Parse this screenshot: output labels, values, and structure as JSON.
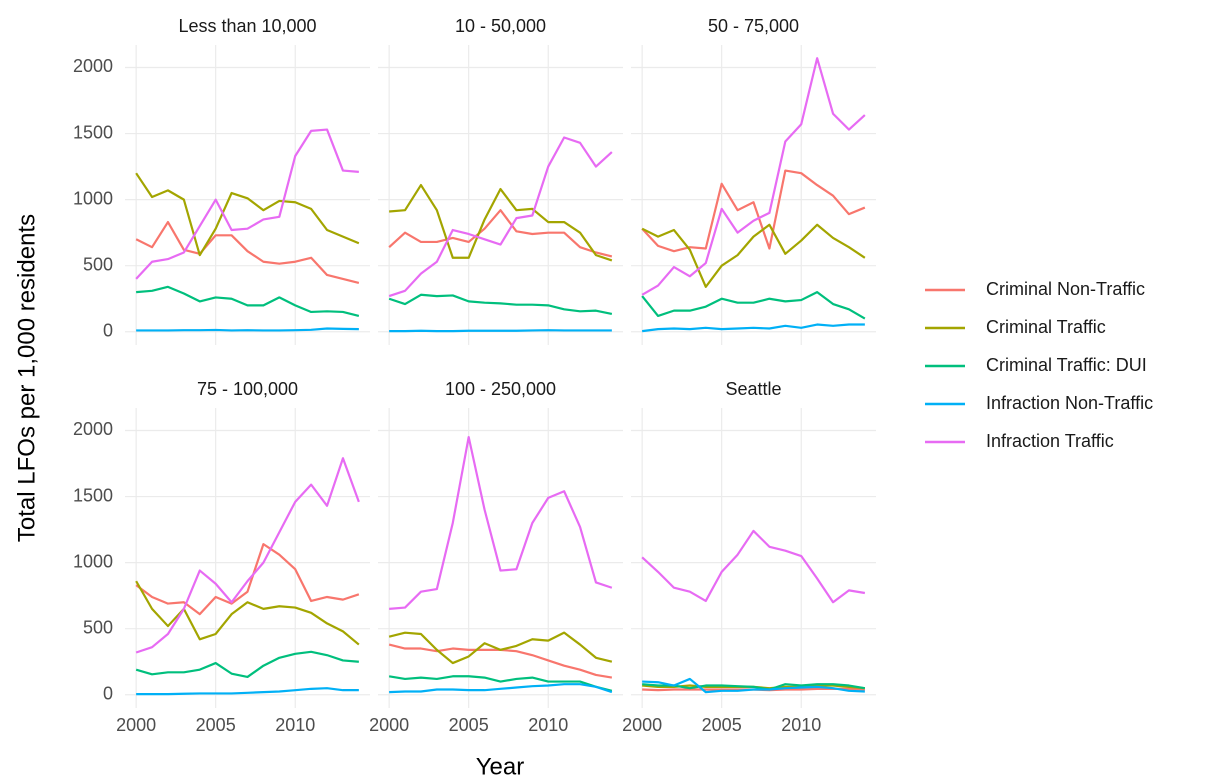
{
  "xlabel": "Year",
  "ylabel": "Total LFOs per 1,000 residents",
  "chart_data": [
    {
      "type": "line",
      "title": "Less than 10,000",
      "x": [
        2000,
        2001,
        2002,
        2003,
        2004,
        2005,
        2006,
        2007,
        2008,
        2009,
        2010,
        2011,
        2012,
        2013,
        2014
      ],
      "xlim": [
        1999.3,
        2014.7
      ],
      "xticks": [
        2000,
        2005,
        2010
      ],
      "ylim": [
        -100,
        2170
      ],
      "yticks": [
        0,
        500,
        1000,
        1500,
        2000
      ],
      "grid": true,
      "series": [
        {
          "name": "Criminal Non-Traffic",
          "color": "#F8766D",
          "values": [
            700,
            640,
            830,
            620,
            590,
            730,
            730,
            610,
            530,
            515,
            530,
            560,
            430,
            400,
            370
          ]
        },
        {
          "name": "Criminal Traffic",
          "color": "#A3A500",
          "values": [
            1200,
            1020,
            1070,
            1000,
            580,
            780,
            1050,
            1010,
            920,
            990,
            980,
            930,
            770,
            720,
            670
          ]
        },
        {
          "name": "Criminal Traffic: DUI",
          "color": "#00BF7D",
          "values": [
            300,
            310,
            340,
            290,
            230,
            260,
            250,
            200,
            200,
            260,
            200,
            150,
            155,
            150,
            120
          ]
        },
        {
          "name": "Infraction Non-Traffic",
          "color": "#00B0F6",
          "values": [
            10,
            10,
            10,
            12,
            12,
            14,
            10,
            12,
            10,
            10,
            12,
            15,
            25,
            22,
            20
          ]
        },
        {
          "name": "Infraction Traffic",
          "color": "#E76BF3",
          "values": [
            400,
            530,
            550,
            600,
            800,
            1000,
            770,
            780,
            850,
            870,
            1330,
            1520,
            1530,
            1220,
            1210
          ]
        }
      ]
    },
    {
      "type": "line",
      "title": "10 - 50,000",
      "x": [
        2000,
        2001,
        2002,
        2003,
        2004,
        2005,
        2006,
        2007,
        2008,
        2009,
        2010,
        2011,
        2012,
        2013,
        2014
      ],
      "xlim": [
        1999.3,
        2014.7
      ],
      "xticks": [
        2000,
        2005,
        2010
      ],
      "ylim": [
        -100,
        2170
      ],
      "yticks": [
        0,
        500,
        1000,
        1500,
        2000
      ],
      "grid": true,
      "series": [
        {
          "name": "Criminal Non-Traffic",
          "color": "#F8766D",
          "values": [
            640,
            750,
            680,
            680,
            710,
            680,
            780,
            920,
            760,
            740,
            750,
            750,
            640,
            600,
            570
          ]
        },
        {
          "name": "Criminal Traffic",
          "color": "#A3A500",
          "values": [
            910,
            920,
            1110,
            920,
            560,
            560,
            850,
            1080,
            920,
            930,
            830,
            830,
            750,
            580,
            540
          ]
        },
        {
          "name": "Criminal Traffic: DUI",
          "color": "#00BF7D",
          "values": [
            250,
            210,
            280,
            270,
            275,
            230,
            220,
            215,
            205,
            205,
            200,
            170,
            155,
            160,
            135
          ]
        },
        {
          "name": "Infraction Non-Traffic",
          "color": "#00B0F6",
          "values": [
            5,
            5,
            8,
            5,
            5,
            8,
            8,
            8,
            8,
            10,
            12,
            10,
            10,
            10,
            10
          ]
        },
        {
          "name": "Infraction Traffic",
          "color": "#E76BF3",
          "values": [
            270,
            310,
            440,
            530,
            770,
            740,
            700,
            660,
            860,
            880,
            1250,
            1470,
            1430,
            1250,
            1360
          ]
        }
      ]
    },
    {
      "type": "line",
      "title": "50 - 75,000",
      "x": [
        2000,
        2001,
        2002,
        2003,
        2004,
        2005,
        2006,
        2007,
        2008,
        2009,
        2010,
        2011,
        2012,
        2013,
        2014
      ],
      "xlim": [
        1999.3,
        2014.7
      ],
      "xticks": [
        2000,
        2005,
        2010
      ],
      "ylim": [
        -100,
        2170
      ],
      "yticks": [
        0,
        500,
        1000,
        1500,
        2000
      ],
      "grid": true,
      "series": [
        {
          "name": "Criminal Non-Traffic",
          "color": "#F8766D",
          "values": [
            780,
            650,
            610,
            640,
            630,
            1120,
            920,
            980,
            630,
            1220,
            1200,
            1110,
            1030,
            890,
            940
          ]
        },
        {
          "name": "Criminal Traffic",
          "color": "#A3A500",
          "values": [
            780,
            720,
            770,
            620,
            340,
            500,
            580,
            720,
            810,
            590,
            690,
            810,
            710,
            640,
            560
          ]
        },
        {
          "name": "Criminal Traffic: DUI",
          "color": "#00BF7D",
          "values": [
            270,
            120,
            160,
            160,
            190,
            250,
            220,
            220,
            250,
            230,
            240,
            300,
            210,
            170,
            100
          ]
        },
        {
          "name": "Infraction Non-Traffic",
          "color": "#00B0F6",
          "values": [
            5,
            20,
            25,
            20,
            30,
            20,
            25,
            30,
            25,
            45,
            30,
            55,
            45,
            55,
            55
          ]
        },
        {
          "name": "Infraction Traffic",
          "color": "#E76BF3",
          "values": [
            280,
            350,
            490,
            420,
            520,
            930,
            750,
            840,
            900,
            1440,
            1570,
            2070,
            1650,
            1530,
            1640
          ]
        }
      ]
    },
    {
      "type": "line",
      "title": "75 - 100,000",
      "x": [
        2000,
        2001,
        2002,
        2003,
        2004,
        2005,
        2006,
        2007,
        2008,
        2009,
        2010,
        2011,
        2012,
        2013,
        2014
      ],
      "xlim": [
        1999.3,
        2014.7
      ],
      "xticks": [
        2000,
        2005,
        2010
      ],
      "ylim": [
        -100,
        2170
      ],
      "yticks": [
        0,
        500,
        1000,
        1500,
        2000
      ],
      "grid": true,
      "series": [
        {
          "name": "Criminal Non-Traffic",
          "color": "#F8766D",
          "values": [
            830,
            740,
            690,
            700,
            610,
            740,
            690,
            780,
            1140,
            1060,
            950,
            710,
            740,
            720,
            760
          ]
        },
        {
          "name": "Criminal Traffic",
          "color": "#A3A500",
          "values": [
            860,
            650,
            520,
            650,
            420,
            460,
            610,
            700,
            650,
            670,
            660,
            620,
            540,
            480,
            380
          ]
        },
        {
          "name": "Criminal Traffic: DUI",
          "color": "#00BF7D",
          "values": [
            190,
            155,
            170,
            170,
            190,
            240,
            160,
            135,
            220,
            280,
            310,
            325,
            300,
            260,
            250
          ]
        },
        {
          "name": "Infraction Non-Traffic",
          "color": "#00B0F6",
          "values": [
            5,
            5,
            5,
            8,
            10,
            10,
            10,
            15,
            20,
            25,
            35,
            45,
            50,
            35,
            35
          ]
        },
        {
          "name": "Infraction Traffic",
          "color": "#E76BF3",
          "values": [
            320,
            360,
            460,
            650,
            940,
            840,
            700,
            860,
            1000,
            1230,
            1460,
            1590,
            1430,
            1790,
            1460
          ]
        }
      ]
    },
    {
      "type": "line",
      "title": "100 - 250,000",
      "x": [
        2000,
        2001,
        2002,
        2003,
        2004,
        2005,
        2006,
        2007,
        2008,
        2009,
        2010,
        2011,
        2012,
        2013,
        2014
      ],
      "xlim": [
        1999.3,
        2014.7
      ],
      "xticks": [
        2000,
        2005,
        2010
      ],
      "ylim": [
        -100,
        2170
      ],
      "yticks": [
        0,
        500,
        1000,
        1500,
        2000
      ],
      "grid": true,
      "series": [
        {
          "name": "Criminal Non-Traffic",
          "color": "#F8766D",
          "values": [
            380,
            350,
            350,
            330,
            350,
            340,
            340,
            340,
            330,
            300,
            260,
            220,
            190,
            150,
            130
          ]
        },
        {
          "name": "Criminal Traffic",
          "color": "#A3A500",
          "values": [
            440,
            470,
            460,
            340,
            240,
            290,
            390,
            340,
            370,
            420,
            410,
            470,
            380,
            280,
            250
          ]
        },
        {
          "name": "Criminal Traffic: DUI",
          "color": "#00BF7D",
          "values": [
            140,
            120,
            130,
            120,
            140,
            140,
            130,
            100,
            120,
            130,
            100,
            100,
            100,
            60,
            30
          ]
        },
        {
          "name": "Infraction Non-Traffic",
          "color": "#00B0F6",
          "values": [
            20,
            25,
            25,
            40,
            40,
            35,
            35,
            45,
            55,
            65,
            70,
            80,
            80,
            60,
            20
          ]
        },
        {
          "name": "Infraction Traffic",
          "color": "#E76BF3",
          "values": [
            650,
            660,
            780,
            800,
            1300,
            1950,
            1400,
            940,
            950,
            1300,
            1490,
            1540,
            1270,
            850,
            810
          ]
        }
      ]
    },
    {
      "type": "line",
      "title": "Seattle",
      "x": [
        2000,
        2001,
        2002,
        2003,
        2004,
        2005,
        2006,
        2007,
        2008,
        2009,
        2010,
        2011,
        2012,
        2013,
        2014
      ],
      "xlim": [
        1999.3,
        2014.7
      ],
      "xticks": [
        2000,
        2005,
        2010
      ],
      "ylim": [
        -100,
        2170
      ],
      "yticks": [
        0,
        500,
        1000,
        1500,
        2000
      ],
      "grid": true,
      "series": [
        {
          "name": "Criminal Non-Traffic",
          "color": "#F8766D",
          "values": [
            40,
            35,
            40,
            40,
            40,
            40,
            40,
            40,
            35,
            40,
            40,
            45,
            45,
            45,
            40
          ]
        },
        {
          "name": "Criminal Traffic",
          "color": "#A3A500",
          "values": [
            70,
            60,
            60,
            70,
            60,
            60,
            60,
            60,
            50,
            60,
            60,
            70,
            70,
            60,
            50
          ]
        },
        {
          "name": "Criminal Traffic: DUI",
          "color": "#00BF7D",
          "values": [
            80,
            70,
            70,
            50,
            70,
            70,
            65,
            60,
            40,
            80,
            70,
            80,
            80,
            70,
            50
          ]
        },
        {
          "name": "Infraction Non-Traffic",
          "color": "#00B0F6",
          "values": [
            100,
            95,
            70,
            120,
            20,
            30,
            30,
            40,
            40,
            50,
            55,
            60,
            50,
            30,
            25
          ]
        },
        {
          "name": "Infraction Traffic",
          "color": "#E76BF3",
          "values": [
            1040,
            930,
            810,
            780,
            710,
            930,
            1060,
            1240,
            1120,
            1090,
            1050,
            880,
            700,
            790,
            770
          ]
        }
      ]
    }
  ]
}
